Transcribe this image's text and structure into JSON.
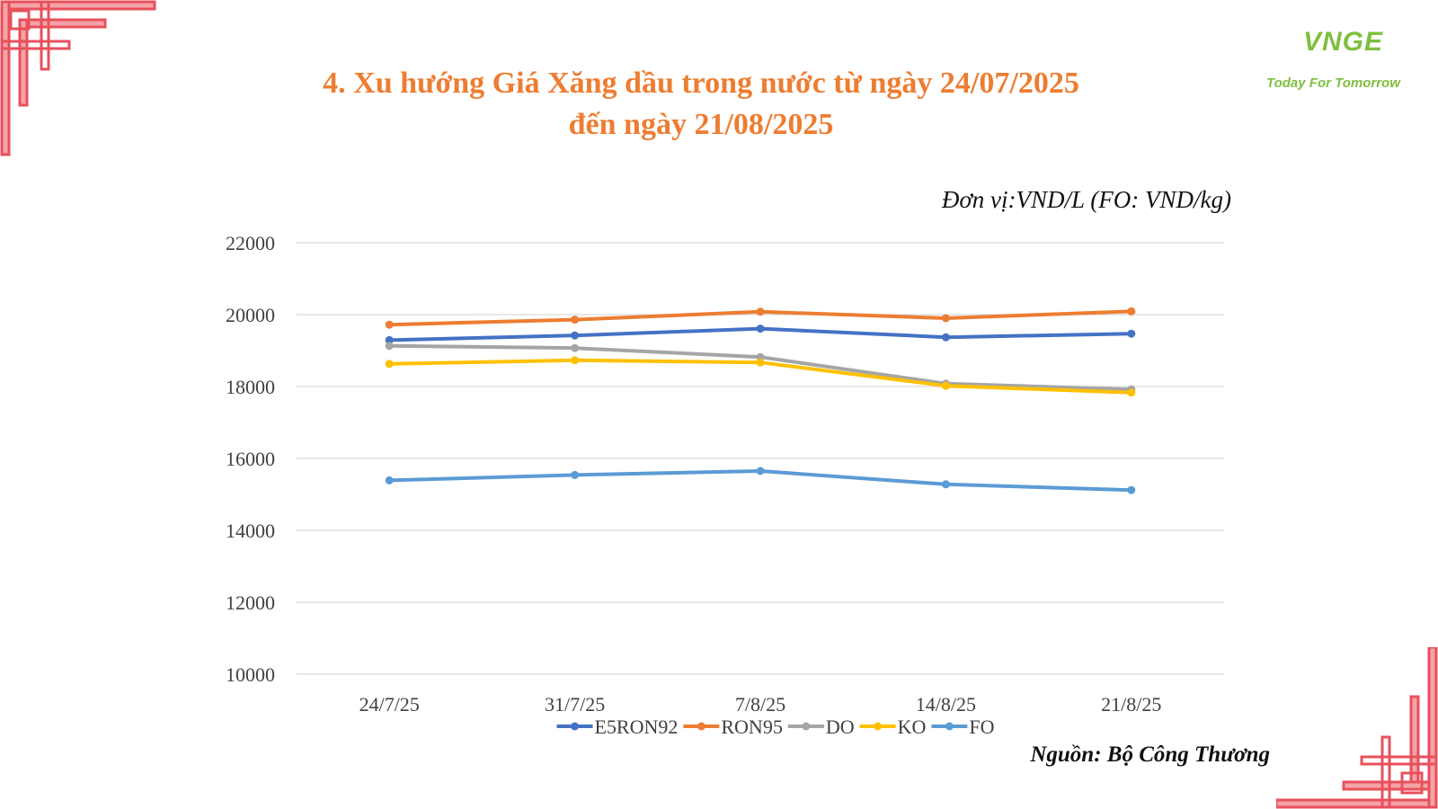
{
  "title_line1": "4. Xu hướng Giá Xăng dầu trong nước từ ngày 24/07/2025",
  "title_line2": "đến ngày 21/08/2025",
  "unit_text": "Đơn vị:VND/L (FO: VND/kg)",
  "source_text": "Nguồn: Bộ Công Thương",
  "logo": {
    "mark": "VNGE",
    "tagline": "Today For Tomorrow",
    "color": "#7fbf3f"
  },
  "decor_color": "#e8505b",
  "chart_data": {
    "type": "line",
    "categories": [
      "24/7/25",
      "31/7/25",
      "7/8/25",
      "14/8/25",
      "21/8/25"
    ],
    "ylim": [
      10000,
      22000
    ],
    "yticks": [
      10000,
      12000,
      14000,
      16000,
      18000,
      20000,
      22000
    ],
    "grid": true,
    "legend": "bottom",
    "series": [
      {
        "name": "E5RON92",
        "color": "#4472c4",
        "values": [
          19290,
          19420,
          19610,
          19370,
          19470
        ]
      },
      {
        "name": "RON95",
        "color": "#ed7d31",
        "values": [
          19720,
          19860,
          20080,
          19900,
          20090
        ]
      },
      {
        "name": "DO",
        "color": "#a5a5a5",
        "values": [
          19130,
          19070,
          18820,
          18080,
          17920
        ]
      },
      {
        "name": "KO",
        "color": "#ffc000",
        "values": [
          18630,
          18730,
          18670,
          18020,
          17830
        ]
      },
      {
        "name": "FO",
        "color": "#5b9bd5",
        "values": [
          15390,
          15540,
          15650,
          15280,
          15120
        ]
      }
    ]
  }
}
